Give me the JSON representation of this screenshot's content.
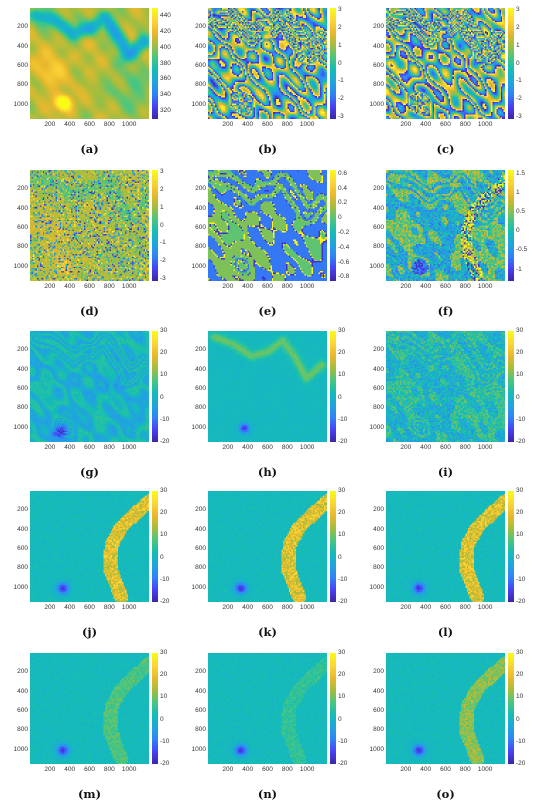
{
  "figure": {
    "grid": {
      "rows": 5,
      "cols": 3
    },
    "colors": {
      "cmap": [
        "#3e26a8",
        "#4743f8",
        "#2f85f5",
        "#1fa6dd",
        "#13bdb6",
        "#4ac67f",
        "#a4bd3e",
        "#e9b82c",
        "#fcd535",
        "#f9fb15"
      ]
    }
  },
  "chart_data": [
    {
      "type": "heatmap",
      "label": "(a)",
      "style": "smooth-hills",
      "xticks": [
        "200",
        "400",
        "600",
        "800",
        "1000"
      ],
      "yticks": [
        "200",
        "400",
        "600",
        "800",
        "1000"
      ],
      "cbar_ticks": [
        "440",
        "420",
        "400",
        "380",
        "360",
        "340",
        "320"
      ],
      "clim": [
        310,
        450
      ]
    },
    {
      "type": "heatmap",
      "label": "(b)",
      "style": "wrapped-fringes",
      "xticks": [
        "200",
        "400",
        "600",
        "800",
        "1000"
      ],
      "yticks": [
        "200",
        "400",
        "600",
        "800",
        "1000"
      ],
      "cbar_ticks": [
        "3",
        "2",
        "1",
        "0",
        "-1",
        "-2",
        "-3"
      ],
      "clim": [
        -3.14,
        3.14
      ]
    },
    {
      "type": "heatmap",
      "label": "(c)",
      "style": "wrapped-fringes-alt",
      "xticks": [
        "200",
        "400",
        "600",
        "800",
        "1000"
      ],
      "yticks": [
        "200",
        "400",
        "600",
        "800",
        "1000"
      ],
      "cbar_ticks": [
        "3",
        "2",
        "1",
        "0",
        "-1",
        "-2",
        "-3"
      ],
      "clim": [
        -3.14,
        3.14
      ]
    },
    {
      "type": "heatmap",
      "label": "(d)",
      "style": "noisy-wrapped",
      "xticks": [
        "200",
        "400",
        "600",
        "800",
        "1000"
      ],
      "yticks": [
        "200",
        "400",
        "600",
        "800",
        "1000"
      ],
      "cbar_ticks": [
        "3",
        "2",
        "1",
        "0",
        "-1",
        "-2",
        "-3"
      ],
      "clim": [
        -3.14,
        3.14
      ]
    },
    {
      "type": "heatmap",
      "label": "(e)",
      "style": "quantized",
      "xticks": [
        "200",
        "400",
        "600",
        "800",
        "1000"
      ],
      "yticks": [
        "200",
        "400",
        "600",
        "800",
        "1000"
      ],
      "cbar_ticks": [
        "0.6",
        "0.4",
        "0.2",
        "0",
        "-0.2",
        "-0.4",
        "-0.6",
        "-0.8"
      ],
      "clim": [
        -0.85,
        0.65
      ]
    },
    {
      "type": "heatmap",
      "label": "(f)",
      "style": "speckle-regions",
      "xticks": [
        "200",
        "400",
        "600",
        "800",
        "1000"
      ],
      "yticks": [
        "200",
        "400",
        "600",
        "800",
        "1000"
      ],
      "cbar_ticks": [
        "1.5",
        "1",
        "0.5",
        "0",
        "-0.5",
        "-1"
      ],
      "clim": [
        -1.3,
        1.6
      ]
    },
    {
      "type": "heatmap",
      "label": "(g)",
      "style": "error-texture",
      "xticks": [
        "200",
        "400",
        "600",
        "800",
        "1000"
      ],
      "yticks": [
        "200",
        "400",
        "600",
        "800",
        "1000"
      ],
      "cbar_ticks": [
        "30",
        "20",
        "10",
        "0",
        "-10",
        "-20"
      ],
      "clim": [
        -20,
        30
      ]
    },
    {
      "type": "heatmap",
      "label": "(h)",
      "style": "error-fringe",
      "xticks": [
        "200",
        "400",
        "600",
        "800",
        "1000"
      ],
      "yticks": [
        "200",
        "400",
        "600",
        "800",
        "1000"
      ],
      "cbar_ticks": [
        "30",
        "20",
        "10",
        "0",
        "-10",
        "-20"
      ],
      "clim": [
        -20,
        30
      ]
    },
    {
      "type": "heatmap",
      "label": "(i)",
      "style": "error-speckle",
      "xticks": [
        "200",
        "400",
        "600",
        "800",
        "1000"
      ],
      "yticks": [
        "200",
        "400",
        "600",
        "800",
        "1000"
      ],
      "cbar_ticks": [
        "30",
        "20",
        "10",
        "0",
        "-10",
        "-20"
      ],
      "clim": [
        -20,
        30
      ]
    },
    {
      "type": "heatmap",
      "label": "(j)",
      "style": "error-arc-strong",
      "xticks": [
        "200",
        "400",
        "600",
        "800",
        "1000"
      ],
      "yticks": [
        "200",
        "400",
        "600",
        "800",
        "1000"
      ],
      "cbar_ticks": [
        "30",
        "20",
        "10",
        "0",
        "-10",
        "-20"
      ],
      "clim": [
        -20,
        30
      ]
    },
    {
      "type": "heatmap",
      "label": "(k)",
      "style": "error-arc-strong",
      "xticks": [
        "200",
        "400",
        "600",
        "800",
        "1000"
      ],
      "yticks": [
        "200",
        "400",
        "600",
        "800",
        "1000"
      ],
      "cbar_ticks": [
        "30",
        "20",
        "10",
        "0",
        "-10",
        "-20"
      ],
      "clim": [
        -20,
        30
      ]
    },
    {
      "type": "heatmap",
      "label": "(l)",
      "style": "error-arc-strong",
      "xticks": [
        "200",
        "400",
        "600",
        "800",
        "1000"
      ],
      "yticks": [
        "200",
        "400",
        "600",
        "800",
        "1000"
      ],
      "cbar_ticks": [
        "30",
        "20",
        "10",
        "0",
        "-10",
        "-20"
      ],
      "clim": [
        -20,
        30
      ]
    },
    {
      "type": "heatmap",
      "label": "(m)",
      "style": "error-arc-faint",
      "xticks": [
        "200",
        "400",
        "600",
        "800",
        "1000"
      ],
      "yticks": [
        "200",
        "400",
        "600",
        "800",
        "1000"
      ],
      "cbar_ticks": [
        "30",
        "20",
        "10",
        "0",
        "-10",
        "-20"
      ],
      "clim": [
        -20,
        30
      ]
    },
    {
      "type": "heatmap",
      "label": "(n)",
      "style": "error-arc-fainter",
      "xticks": [
        "200",
        "400",
        "600",
        "800",
        "1000"
      ],
      "yticks": [
        "200",
        "400",
        "600",
        "800",
        "1000"
      ],
      "cbar_ticks": [
        "30",
        "20",
        "10",
        "0",
        "-10",
        "-20"
      ],
      "clim": [
        -20,
        30
      ]
    },
    {
      "type": "heatmap",
      "label": "(o)",
      "style": "error-arc-medium",
      "xticks": [
        "200",
        "400",
        "600",
        "800",
        "1000"
      ],
      "yticks": [
        "200",
        "400",
        "600",
        "800",
        "1000"
      ],
      "cbar_ticks": [
        "30",
        "20",
        "10",
        "0",
        "-10",
        "-20"
      ],
      "clim": [
        -20,
        30
      ]
    }
  ]
}
